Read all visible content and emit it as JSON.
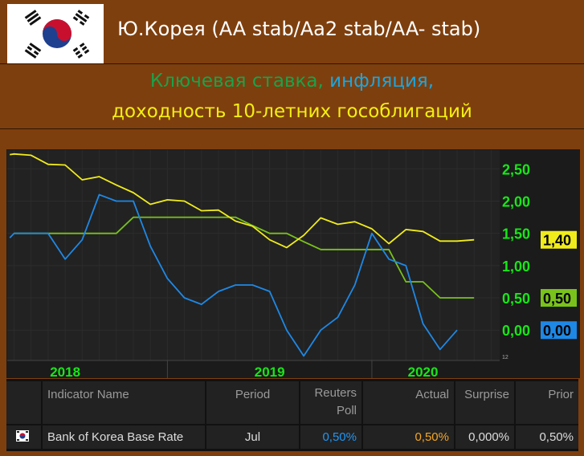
{
  "header": {
    "title": "Ю.Корея (AA stab/Aa2 stab/AA- stab)",
    "subtitle_key_rate": "Ключевая ставка,",
    "subtitle_inflation": "инфляция,",
    "subtitle_yield": "доходность 10-летних гособлигаций"
  },
  "colors": {
    "background": "#7e3f0e",
    "key_rate": "#79c21c",
    "inflation": "#1e88e5",
    "yield": "#f0ec1c",
    "axis_label": "#19e619"
  },
  "chart_data": {
    "type": "line",
    "x_unit": "month index (0 = Jan 2018)",
    "x_year_labels": [
      {
        "label": "2018",
        "month": 6
      },
      {
        "label": "2019",
        "month": 18
      },
      {
        "label": "2020",
        "month": 27
      }
    ],
    "xlim": [
      2.6,
      31.5
    ],
    "ylim": [
      -0.47,
      2.79
    ],
    "yticks": [
      "2,50",
      "2,00",
      "1,50",
      "1,00",
      "0,50",
      "0,00"
    ],
    "ytick_values": [
      2.5,
      2.0,
      1.5,
      1.0,
      0.5,
      0.0
    ],
    "series": [
      {
        "name": "Ключевая ставка",
        "color": "#79c21c",
        "last_label": "0,50",
        "last_value": 0.5,
        "x": [
          3,
          4,
          5,
          6,
          7,
          8,
          9,
          10,
          11,
          12,
          13,
          14,
          15,
          16,
          17,
          18,
          19,
          20,
          21,
          22,
          23,
          24,
          25,
          26,
          27,
          28,
          29,
          30
        ],
        "values": [
          1.5,
          1.5,
          1.5,
          1.5,
          1.5,
          1.5,
          1.5,
          1.75,
          1.75,
          1.75,
          1.75,
          1.75,
          1.75,
          1.75,
          1.62,
          1.5,
          1.5,
          1.37,
          1.25,
          1.25,
          1.25,
          1.25,
          1.25,
          0.75,
          0.75,
          0.5,
          0.5,
          0.5
        ]
      },
      {
        "name": "Инфляция",
        "color": "#1e88e5",
        "last_label": "0,00",
        "last_value": 0.0,
        "x": [
          2.75,
          3,
          4,
          5,
          6,
          7,
          8,
          9,
          10,
          11,
          12,
          13,
          14,
          15,
          16,
          17,
          18,
          19,
          20,
          21,
          22,
          23,
          24,
          25,
          26,
          27,
          28,
          29
        ],
        "values": [
          1.43,
          1.5,
          1.5,
          1.5,
          1.1,
          1.4,
          2.1,
          2.0,
          2.0,
          1.3,
          0.8,
          0.5,
          0.4,
          0.6,
          0.7,
          0.7,
          0.6,
          0.0,
          -0.4,
          0.0,
          0.2,
          0.7,
          1.5,
          1.1,
          1.0,
          0.1,
          -0.3,
          0.0
        ]
      },
      {
        "name": "Доходность 10-летних гособлигаций",
        "color": "#f0ec1c",
        "last_label": "1,40",
        "last_value": 1.4,
        "x": [
          2.75,
          3,
          4,
          5,
          6,
          7,
          8,
          9,
          10,
          11,
          12,
          13,
          14,
          15,
          16,
          17,
          18,
          19,
          20,
          21,
          22,
          23,
          24,
          25,
          26,
          27,
          28,
          29,
          30
        ],
        "values": [
          2.72,
          2.73,
          2.71,
          2.57,
          2.56,
          2.33,
          2.38,
          2.25,
          2.13,
          1.95,
          2.02,
          2.0,
          1.85,
          1.86,
          1.69,
          1.61,
          1.4,
          1.28,
          1.47,
          1.74,
          1.64,
          1.68,
          1.57,
          1.34,
          1.56,
          1.53,
          1.38,
          1.38,
          1.4
        ]
      }
    ],
    "corner_label": "12"
  },
  "table": {
    "headers": [
      "Indicator Name",
      "Period",
      "Reuters Poll",
      "Actual",
      "Surprise",
      "Prior"
    ],
    "row": {
      "name": "Bank of Korea Base Rate",
      "period": "Jul",
      "reuters_poll": "0,50%",
      "actual": "0,50%",
      "surprise": "0,000%",
      "prior": "0,50%"
    }
  }
}
